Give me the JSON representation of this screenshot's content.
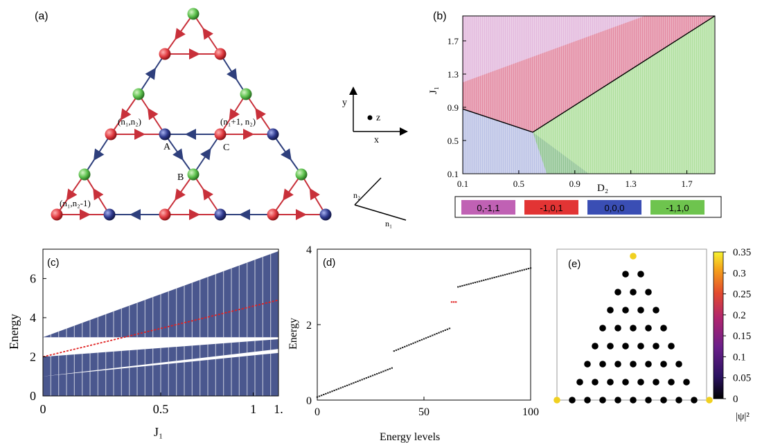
{
  "panels": {
    "a": {
      "label": "(a)",
      "site_labels": {
        "A": "A",
        "B": "B",
        "C": "C"
      },
      "cell_labels": {
        "n1n2": "(n₁,n₂)",
        "n1p1n2": "(n₁+1, n₂)",
        "n1n2m1": "(n₁,n₂-1)"
      },
      "axes_xyz": {
        "x": "x",
        "y": "y",
        "z": "z"
      },
      "axes_n": {
        "n1": "n₁",
        "n2": "n₂"
      },
      "colors": {
        "site_A": "#d0343a",
        "site_B": "#55b84a",
        "site_C": "#2a2f7a",
        "bond_red": "#c8303a",
        "bond_blue": "#2e3f7c"
      }
    },
    "b": {
      "label": "(b)",
      "xlabel": "D₂",
      "ylabel": "J₁",
      "xticks": [
        "0.1",
        "0.5",
        "0.9",
        "1.3",
        "1.7"
      ],
      "yticks": [
        "0.1",
        "0.5",
        "0.9",
        "1.3",
        "1.7"
      ],
      "legend": [
        {
          "label": "0,-1,1",
          "color": "#c061b4"
        },
        {
          "label": "-1,0,1",
          "color": "#e23434"
        },
        {
          "label": "0,0,0",
          "color": "#3a4eb4"
        },
        {
          "label": "-1,1,0",
          "color": "#6ec44e"
        }
      ]
    },
    "c": {
      "label": "(c)",
      "xlabel": "J₁",
      "ylabel": "Energy",
      "xticks": [
        "0",
        "0.5",
        "1",
        "1."
      ],
      "yticks": [
        "0",
        "2",
        "4",
        "6"
      ]
    },
    "d": {
      "label": "(d)",
      "xlabel": "Energy levels",
      "ylabel": "Energy",
      "xticks": [
        "0",
        "50",
        "100"
      ],
      "yticks": [
        "0",
        "2",
        "4"
      ]
    },
    "e": {
      "label": "(e)",
      "colorbar_ticks": [
        "0.35",
        "0.3",
        "0.25",
        "0.2",
        "0.15",
        "0.1",
        "0.05",
        "0"
      ],
      "colorbar_label": "|ψ|²"
    }
  },
  "chart_data": [
    {
      "panel": "b",
      "type": "heatmap",
      "xlim": [
        0.1,
        1.9
      ],
      "ylim": [
        0.1,
        2.0
      ],
      "boundary_line": {
        "x": [
          0.1,
          0.6,
          1.9
        ],
        "y": [
          0.88,
          0.6,
          2.0
        ]
      },
      "regions": [
        "0,-1,1",
        "-1,0,1",
        "0,0,0",
        "-1,1,0"
      ]
    },
    {
      "panel": "c",
      "type": "line",
      "xlim": [
        0,
        1.0
      ],
      "ylim": [
        0,
        7.5
      ],
      "bands": [
        {
          "name": "upper",
          "x": [
            0,
            1.0
          ],
          "lower": [
            3.0,
            3.0
          ],
          "upper": [
            3.0,
            7.4
          ]
        },
        {
          "name": "middle",
          "x": [
            0,
            1.0
          ],
          "lower": [
            1.0,
            2.4
          ],
          "upper": [
            2.0,
            2.9
          ]
        },
        {
          "name": "lower",
          "x": [
            0,
            1.0
          ],
          "lower": [
            0.0,
            0.0
          ],
          "upper": [
            1.0,
            2.2
          ]
        }
      ],
      "edge_state": {
        "x": [
          0,
          1.0
        ],
        "y": [
          2.0,
          4.9
        ]
      }
    },
    {
      "panel": "d",
      "type": "scatter",
      "xlim": [
        0,
        100
      ],
      "ylim": [
        0,
        4
      ],
      "segments": [
        {
          "x": [
            0,
            35
          ],
          "y": [
            0.08,
            0.85
          ]
        },
        {
          "x": [
            36,
            62
          ],
          "y": [
            1.3,
            1.9
          ]
        },
        {
          "x": [
            63,
            65
          ],
          "y": [
            2.6,
            2.6
          ],
          "highlight": true
        },
        {
          "x": [
            66,
            100
          ],
          "y": [
            3.0,
            3.5
          ]
        }
      ]
    },
    {
      "panel": "e",
      "type": "scatter",
      "rows": 8,
      "colorbar_range": [
        0,
        0.35
      ],
      "highlight_sites": [
        "top",
        "bottom-left",
        "bottom-right"
      ]
    }
  ]
}
